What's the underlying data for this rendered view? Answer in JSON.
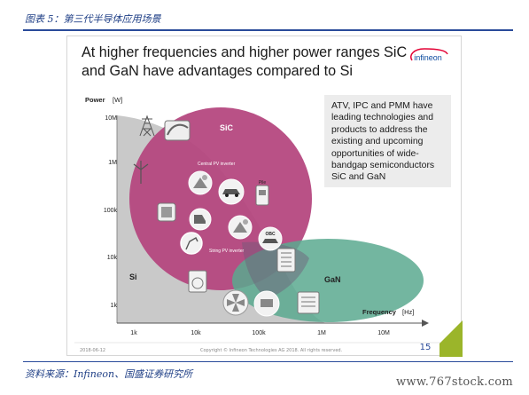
{
  "caption": "图表 5：第三代半导体应用场景",
  "source": "资料来源：Infineon、国盛证券研究所",
  "watermark": "www.767stock.com",
  "slide": {
    "title": "At higher frequencies and higher power ranges SiC and GaN have advantages compared to Si",
    "logo_text": "infineon",
    "info_text": "ATV, IPC and PMM have leading technologies and products to address the existing and upcoming opportunities of wide-bandgap semiconductors SiC and GaN",
    "footer_date": "2018-06-12",
    "footer_copyright": "Copyright © Infineon Technologies AG 2018. All rights reserved.",
    "page_number": "15"
  },
  "colors": {
    "caption_blue": "#1f3f86",
    "si_region": "#c9c9c9",
    "sic_region": "#b5487f",
    "gan_region": "#5aa98f",
    "info_box": "#ececec",
    "logo_red": "#e30034",
    "logo_blue": "#0a4a9e",
    "page_accent": "#9bb52a"
  },
  "chart_data": {
    "type": "region-map",
    "x_axis": {
      "label": "Frequency",
      "unit": "[Hz]",
      "scale": "log",
      "tick_labels": [
        "1k",
        "10k",
        "100k",
        "1M",
        "10M"
      ],
      "tick_values": [
        1000,
        10000,
        100000,
        1000000,
        10000000
      ]
    },
    "y_axis": {
      "label": "Power",
      "unit": "[W]",
      "scale": "log",
      "tick_labels": [
        "1k",
        "10k",
        "100k",
        "1M",
        "10M"
      ],
      "tick_values": [
        1000,
        10000,
        100000,
        1000000,
        10000000
      ]
    },
    "regions": [
      {
        "label": "Si",
        "color": "#c9c9c9"
      },
      {
        "label": "SiC",
        "color": "#b5487f"
      },
      {
        "label": "GaN",
        "color": "#5aa98f"
      }
    ],
    "annotations": [
      "Central PV inverter",
      "String PV inverter",
      "Pile",
      "OBC"
    ],
    "applications": [
      {
        "icon": "power-tower-icon"
      },
      {
        "icon": "train-icon"
      },
      {
        "icon": "wind-turbine-icon"
      },
      {
        "icon": "solar-panel-icon",
        "label": "Central PV inverter"
      },
      {
        "icon": "car-icon"
      },
      {
        "icon": "charging-pile-icon",
        "label": "Pile"
      },
      {
        "icon": "industrial-drive-icon"
      },
      {
        "icon": "forklift-icon"
      },
      {
        "icon": "string-solar-icon",
        "label": "String PV inverter"
      },
      {
        "icon": "onboard-charger-icon",
        "label": "OBC"
      },
      {
        "icon": "robot-arm-icon"
      },
      {
        "icon": "server-rack-icon"
      },
      {
        "icon": "washing-machine-icon"
      },
      {
        "icon": "fan-icon"
      },
      {
        "icon": "pc-power-icon"
      },
      {
        "icon": "telecom-rack-icon"
      }
    ]
  }
}
